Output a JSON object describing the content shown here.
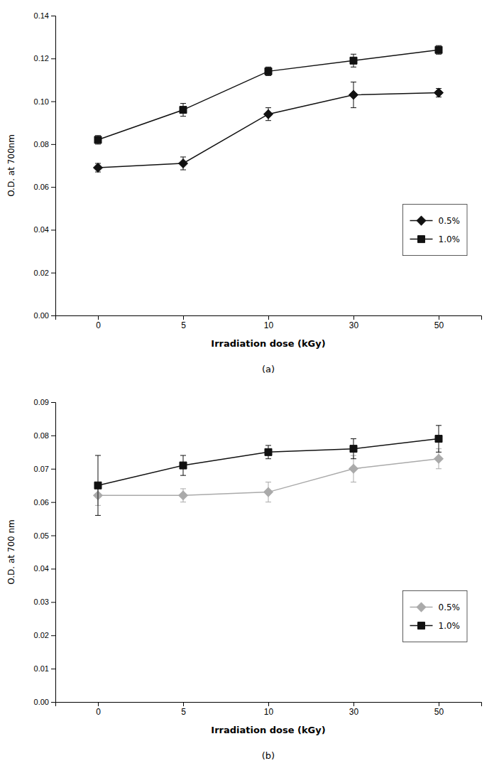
{
  "chart_data": [
    {
      "type": "line",
      "title": "(a)",
      "x_label": "Irradiation dose (kGy)",
      "y_label": "O.D. at 700nm",
      "categories": [
        "0",
        "5",
        "10",
        "30",
        "50"
      ],
      "series": [
        {
          "name": "0.5%",
          "color": "#111111",
          "marker": "diamond",
          "line_style": "solid",
          "values": [
            0.069,
            0.071,
            0.094,
            0.103,
            0.104
          ],
          "errors": [
            0.002,
            0.003,
            0.003,
            0.006,
            0.002
          ]
        },
        {
          "name": "1.0%",
          "color": "#111111",
          "marker": "square",
          "line_style": "solid",
          "values": [
            0.082,
            0.096,
            0.114,
            0.119,
            0.124
          ],
          "errors": [
            0.002,
            0.003,
            0.002,
            0.003,
            0.002
          ]
        }
      ],
      "ylim": [
        0,
        0.14
      ],
      "yticks": [
        {
          "value": 0,
          "label": "0.00"
        },
        0.02,
        0.04,
        0.06,
        0.08,
        {
          "value": 0.1,
          "label": "0.10"
        },
        0.12,
        0.14
      ],
      "grid": false,
      "legend": "lower right"
    },
    {
      "type": "line",
      "title": "(b)",
      "x_label": "Irradiation dose (kGy)",
      "y_label": "O.D. at 700 nm",
      "categories": [
        "0",
        "5",
        "10",
        "30",
        "50"
      ],
      "series": [
        {
          "name": "0.5%",
          "color": "#aaaaaa",
          "marker": "diamond",
          "line_style": "solid",
          "values": [
            0.062,
            0.062,
            0.063,
            0.07,
            0.073
          ],
          "errors": [
            0.003,
            0.002,
            0.003,
            0.004,
            0.003
          ]
        },
        {
          "name": "1.0%",
          "color": "#111111",
          "marker": "square",
          "line_style": "solid",
          "values": [
            0.065,
            0.071,
            0.075,
            0.076,
            0.079
          ],
          "errors": [
            0.009,
            0.003,
            0.002,
            0.003,
            0.004
          ]
        }
      ],
      "ylim": [
        0,
        0.09
      ],
      "yticks": [
        {
          "value": 0,
          "label": "0.00"
        },
        0.01,
        0.02,
        0.03,
        0.04,
        0.05,
        0.06,
        0.07,
        0.08,
        0.09
      ],
      "grid": false,
      "legend": "lower right"
    }
  ]
}
